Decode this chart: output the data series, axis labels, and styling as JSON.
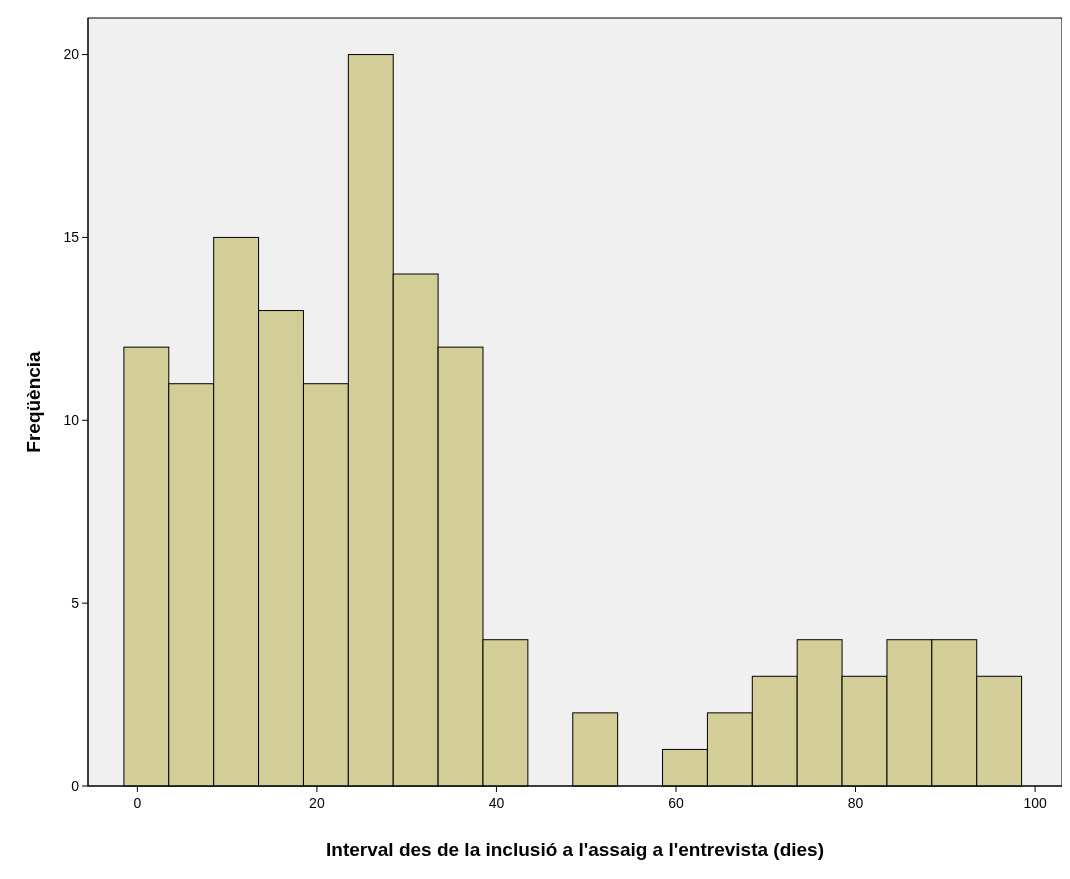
{
  "chart_data": {
    "type": "histogram",
    "xlabel": "Interval des de la inclusió a l'assaig a l'entrevista (dies)",
    "ylabel": "Freqüència",
    "bins": [
      -1.5,
      3.5,
      8.5,
      13.5,
      18.5,
      23.5,
      28.5,
      33.5,
      38.5,
      43.5,
      48.5,
      53.5,
      58.5,
      63.5,
      68.5,
      73.5,
      78.5,
      83.5,
      88.5,
      93.5,
      98.5
    ],
    "values": [
      12,
      11,
      15,
      13,
      11,
      20,
      14,
      12,
      4,
      0,
      2,
      0,
      1,
      2,
      3,
      4,
      3,
      4,
      4,
      3
    ],
    "color": "#d3ce98",
    "xlim": [
      -5.5,
      103
    ],
    "xticks": [
      0,
      20,
      40,
      60,
      80,
      100
    ],
    "ylim": [
      0,
      21
    ],
    "yticks": [
      0,
      5,
      10,
      15,
      20
    ],
    "grid": false
  }
}
